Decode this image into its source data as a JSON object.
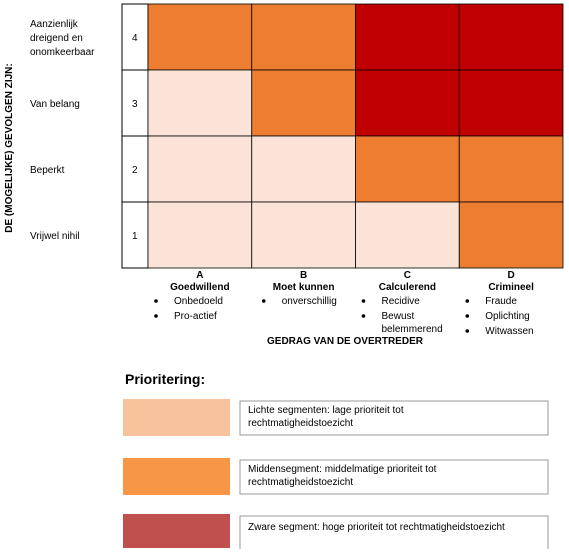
{
  "y_axis_title": "DE (MOGELIJKE) GEVOLGEN ZIJN:",
  "x_axis_title": "GEDRAG VAN DE OVERTREDER",
  "level_colors": {
    "light": "#fbe4d7",
    "medium": "#ed7d31",
    "heavy": "#c00000"
  },
  "rows": [
    {
      "label": [
        "Aanzienlijk",
        "dreigend en",
        "onomkeerbaar"
      ],
      "number": "4",
      "cells": [
        "medium",
        "medium",
        "heavy",
        "heavy"
      ]
    },
    {
      "label": [
        "Van belang"
      ],
      "number": "3",
      "cells": [
        "light",
        "medium",
        "heavy",
        "heavy"
      ]
    },
    {
      "label": [
        "Beperkt"
      ],
      "number": "2",
      "cells": [
        "light",
        "light",
        "medium",
        "medium"
      ]
    },
    {
      "label": [
        "Vrijwel nihil"
      ],
      "number": "1",
      "cells": [
        "light",
        "light",
        "light",
        "medium"
      ]
    }
  ],
  "columns": [
    {
      "letter": "A",
      "name": "Goedwillend",
      "bullets": [
        "Onbedoeld",
        "Pro-actief"
      ]
    },
    {
      "letter": "B",
      "name": "Moet kunnen",
      "bullets": [
        "onverschillig"
      ]
    },
    {
      "letter": "C",
      "name": "Calculerend",
      "bullets": [
        "Recidive",
        "Bewust belemmerend"
      ]
    },
    {
      "letter": "D",
      "name": "Crimineel",
      "bullets": [
        "Fraude",
        "Oplichting",
        "Witwassen"
      ]
    }
  ],
  "legend": {
    "title": "Prioritering:",
    "items": [
      {
        "color": "#f8c29c",
        "text": [
          "Lichte segmenten:  lage prioriteit tot",
          "rechtmatigheidstoezicht"
        ]
      },
      {
        "color": "#f79646",
        "text": [
          "Middensegment:  middelmatige prioriteit tot",
          "rechtmatigheidstoezicht"
        ]
      },
      {
        "color": "#c0504d",
        "text": [
          "Zware  segment:  hoge prioriteit tot rechtmatigheidstoezicht"
        ]
      }
    ]
  }
}
